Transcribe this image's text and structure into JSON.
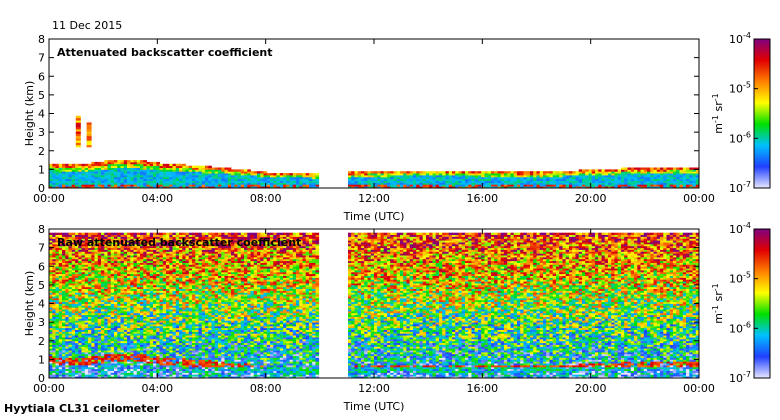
{
  "header": {
    "date": "11 Dec 2015"
  },
  "footer": {
    "site": "Hyytiala CL31 ceilometer"
  },
  "chart_data": [
    {
      "type": "heatmap",
      "title": "Attenuated backscatter coefficient",
      "xlabel": "Time (UTC)",
      "ylabel": "Height (km)",
      "xticks": [
        "00:00",
        "04:00",
        "08:00",
        "12:00",
        "16:00",
        "20:00",
        "00:00"
      ],
      "yticks": [
        0,
        1,
        2,
        3,
        4,
        5,
        6,
        7,
        8
      ],
      "xlim_hours": [
        0,
        24
      ],
      "ylim_km": [
        0,
        8
      ],
      "data_gap_hours": [
        10.0,
        11.0
      ],
      "colorbar": {
        "scale": "log",
        "range": [
          1e-07,
          0.0001
        ],
        "ticks": [
          "10-7",
          "10-6",
          "10-5",
          "10-4"
        ],
        "unit": "m-1 sr-1",
        "colormap": [
          "#e8e8ff",
          "#2040ff",
          "#00c0ff",
          "#00e000",
          "#ffff00",
          "#ff8000",
          "#e00000",
          "#800080"
        ]
      },
      "features": {
        "boundary_layer_top_km": [
          [
            0,
            1.3
          ],
          [
            1,
            1.2
          ],
          [
            2,
            1.4
          ],
          [
            3,
            1.5
          ],
          [
            4,
            1.3
          ],
          [
            6,
            1.1
          ],
          [
            8,
            0.8
          ],
          [
            10,
            0.7
          ],
          [
            11,
            0.8
          ],
          [
            14,
            0.9
          ],
          [
            18,
            0.8
          ],
          [
            21,
            1.0
          ],
          [
            24,
            1.1
          ]
        ],
        "cloud_patches": [
          {
            "time_hours": 1.1,
            "height_km": [
              2.2,
              3.8
            ]
          },
          {
            "time_hours": 1.5,
            "height_km": [
              2.2,
              3.5
            ]
          }
        ]
      }
    },
    {
      "type": "heatmap",
      "title": "Raw attenuated backscatter coefficient",
      "xlabel": "Time (UTC)",
      "ylabel": "Height (km)",
      "xticks": [
        "00:00",
        "04:00",
        "08:00",
        "12:00",
        "16:00",
        "20:00",
        "00:00"
      ],
      "yticks": [
        0,
        1,
        2,
        3,
        4,
        5,
        6,
        7,
        8
      ],
      "xlim_hours": [
        0,
        24
      ],
      "ylim_km": [
        0,
        8
      ],
      "data_top_km": 7.7,
      "data_gap_hours": [
        10.0,
        11.0
      ],
      "colorbar": {
        "scale": "log",
        "range": [
          1e-07,
          0.0001
        ],
        "ticks": [
          "10-7",
          "10-6",
          "10-5",
          "10-4"
        ],
        "unit": "m-1 sr-1",
        "colormap": [
          "#e8e8ff",
          "#2040ff",
          "#00c0ff",
          "#00e000",
          "#ffff00",
          "#ff8000",
          "#e00000",
          "#800080"
        ]
      }
    }
  ]
}
